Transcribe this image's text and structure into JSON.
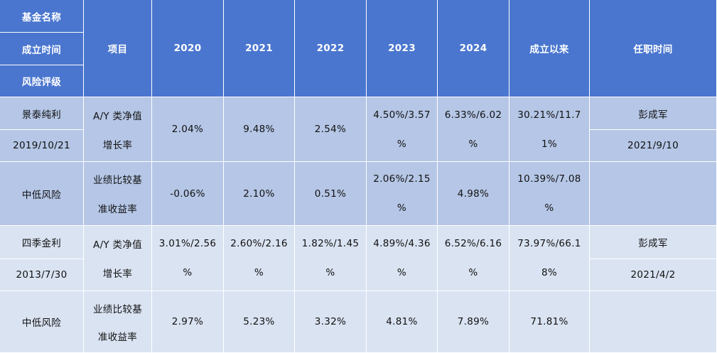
{
  "header": {
    "fund_name": "基金名称",
    "established": "成立时间",
    "risk_rating": "风险评级",
    "item": "项目",
    "years": [
      "2020",
      "2021",
      "2022",
      "2023",
      "2024"
    ],
    "since_inception": "成立以来",
    "tenure": "任职时间"
  },
  "funds": [
    {
      "name": "景泰纯利",
      "date": "2019/10/21",
      "risk": "中低风险",
      "nav_label_1": "A/Y 类净值",
      "nav_label_2": "增长率",
      "nav": {
        "y2020": "2.04%",
        "y2021": "9.48%",
        "y2022": "2.54%",
        "y2023_1": "4.50%/3.57",
        "y2023_2": "%",
        "y2024_1": "6.33%/6.02",
        "y2024_2": "%",
        "since_1": "30.21%/11.7",
        "since_2": "1%"
      },
      "bench_label_1": "业绩比较基",
      "bench_label_2": "准收益率",
      "bench": {
        "y2020": "-0.06%",
        "y2021": "2.10%",
        "y2022": "0.51%",
        "y2023_1": "2.06%/2.15",
        "y2023_2": "%",
        "y2024": "4.98%",
        "since_1": "10.39%/7.08",
        "since_2": "%"
      },
      "manager": "彭成军",
      "tenure_date": "2021/9/10"
    },
    {
      "name": "四季金利",
      "date": "2013/7/30",
      "risk": "中低风险",
      "nav_label_1": "A/Y 类净值",
      "nav_label_2": "增长率",
      "nav": {
        "y2020_1": "3.01%/2.56",
        "y2020_2": "%",
        "y2021_1": "2.60%/2.16",
        "y2021_2": "%",
        "y2022_1": "1.82%/1.45",
        "y2022_2": "%",
        "y2023_1": "4.89%/4.36",
        "y2023_2": "%",
        "y2024_1": "6.52%/6.16",
        "y2024_2": "%",
        "since_1": "73.97%/66.1",
        "since_2": "8%"
      },
      "bench_label_1": "业绩比较基",
      "bench_label_2": "准收益率",
      "bench": {
        "y2020": "2.97%",
        "y2021": "5.23%",
        "y2022": "3.32%",
        "y2023": "4.81%",
        "y2024": "7.89%",
        "since": "71.81%"
      },
      "manager": "彭成军",
      "tenure_date": "2021/4/2"
    }
  ]
}
